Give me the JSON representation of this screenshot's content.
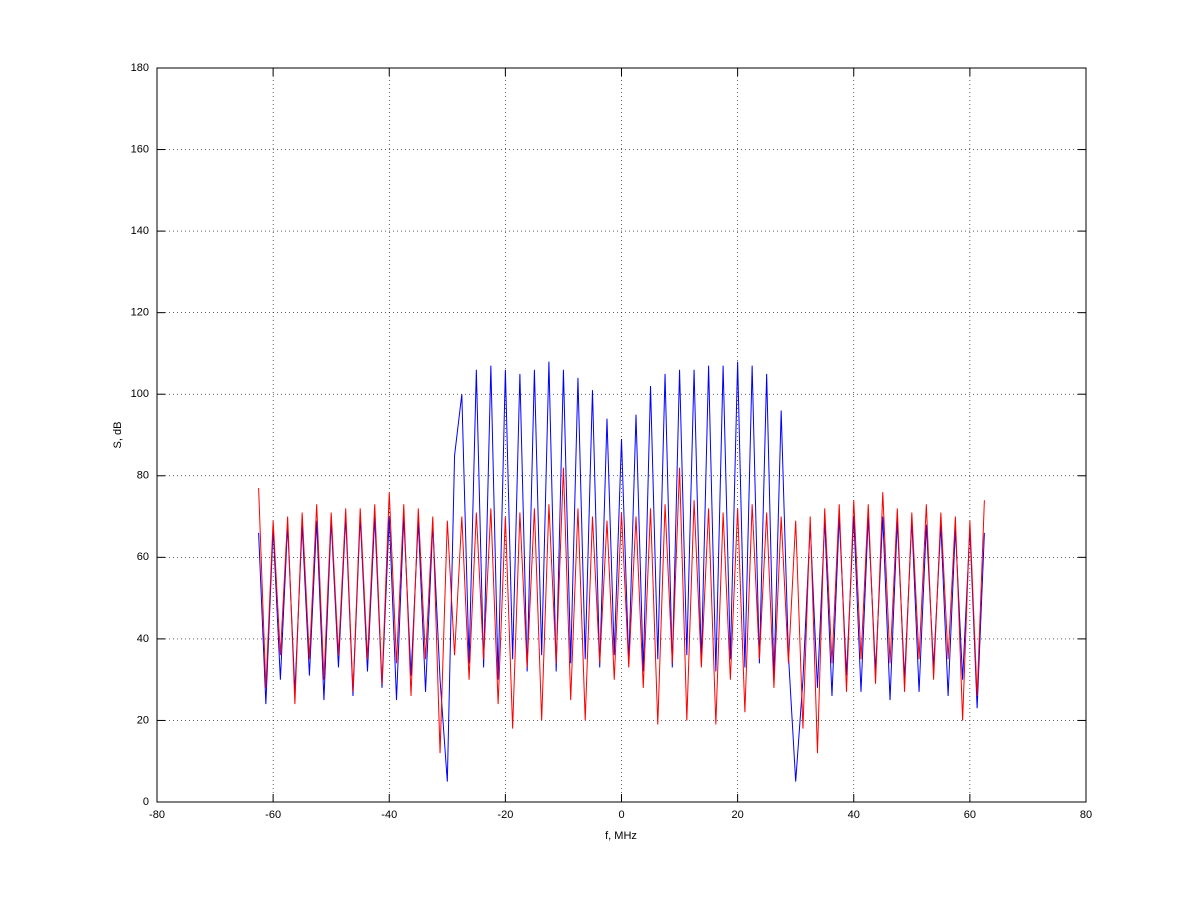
{
  "chart_data": {
    "type": "line",
    "xlabel": "f, MHz",
    "ylabel": "S, dB",
    "x": [
      -62.5,
      -61.25,
      -60,
      -58.75,
      -57.5,
      -56.25,
      -55,
      -53.75,
      -52.5,
      -51.25,
      -50,
      -48.75,
      -47.5,
      -46.25,
      -45,
      -43.75,
      -42.5,
      -41.25,
      -40,
      -38.75,
      -37.5,
      -36.25,
      -35,
      -33.75,
      -32.5,
      -31.25,
      -30,
      -28.75,
      -27.5,
      -26.25,
      -25,
      -23.75,
      -22.5,
      -21.25,
      -20,
      -18.75,
      -17.5,
      -16.25,
      -15,
      -13.75,
      -12.5,
      -11.25,
      -10,
      -8.75,
      -7.5,
      -6.25,
      -5,
      -3.75,
      -2.5,
      -1.25,
      0,
      1.25,
      2.5,
      3.75,
      5,
      6.25,
      7.5,
      8.75,
      10,
      11.25,
      12.5,
      13.75,
      15,
      16.25,
      17.5,
      18.75,
      20,
      21.25,
      22.5,
      23.75,
      25,
      26.25,
      27.5,
      28.75,
      30,
      31.25,
      32.5,
      33.75,
      35,
      36.25,
      37.5,
      38.75,
      40,
      41.25,
      42.5,
      43.75,
      45,
      46.25,
      47.5,
      48.75,
      50,
      51.25,
      52.5,
      53.75,
      55,
      56.25,
      57.5,
      58.75,
      60,
      61.25,
      62.5
    ],
    "series": [
      {
        "color": "#0000ff",
        "values": [
          66,
          24,
          67,
          30,
          68,
          27,
          68,
          31,
          69,
          25,
          69,
          33,
          70,
          26,
          70,
          32,
          70,
          28,
          70,
          25,
          70,
          31,
          69,
          27,
          68,
          30,
          5,
          85,
          100,
          34,
          106,
          33,
          107,
          30,
          106,
          35,
          105,
          32,
          106,
          36,
          108,
          32,
          106,
          34,
          104,
          35,
          101,
          33,
          94,
          36,
          89,
          34,
          95,
          32,
          102,
          35,
          105,
          33,
          106,
          36,
          106,
          34,
          107,
          32,
          107,
          35,
          108,
          33,
          107,
          34,
          105,
          30,
          96,
          36,
          5,
          30,
          68,
          28,
          69,
          26,
          70,
          31,
          70,
          27,
          70,
          32,
          70,
          25,
          69,
          30,
          69,
          27,
          68,
          33,
          68,
          26,
          67,
          30,
          67,
          23,
          66
        ]
      },
      {
        "color": "#ff0000",
        "values": [
          77,
          28,
          69,
          36,
          70,
          24,
          71,
          35,
          73,
          30,
          71,
          36,
          72,
          27,
          72,
          35,
          73,
          29,
          76,
          34,
          73,
          26,
          72,
          35,
          70,
          12,
          69,
          36,
          70,
          30,
          71,
          35,
          72,
          24,
          70,
          18,
          71,
          33,
          72,
          20,
          73,
          34,
          82,
          25,
          72,
          20,
          70,
          34,
          69,
          30,
          71,
          33,
          70,
          28,
          72,
          19,
          73,
          34,
          82,
          20,
          74,
          33,
          72,
          19,
          71,
          30,
          72,
          22,
          73,
          35,
          71,
          28,
          70,
          34,
          69,
          18,
          70,
          12,
          72,
          34,
          73,
          27,
          74,
          35,
          73,
          29,
          76,
          34,
          72,
          27,
          71,
          35,
          73,
          30,
          71,
          35,
          70,
          20,
          69,
          26,
          74
        ]
      }
    ],
    "xlim": [
      -80,
      80
    ],
    "ylim": [
      0,
      180
    ],
    "xticks": [
      -80,
      -60,
      -40,
      -20,
      0,
      20,
      40,
      60,
      80
    ],
    "yticks": [
      0,
      20,
      40,
      60,
      80,
      100,
      120,
      140,
      160,
      180
    ],
    "grid": true
  }
}
